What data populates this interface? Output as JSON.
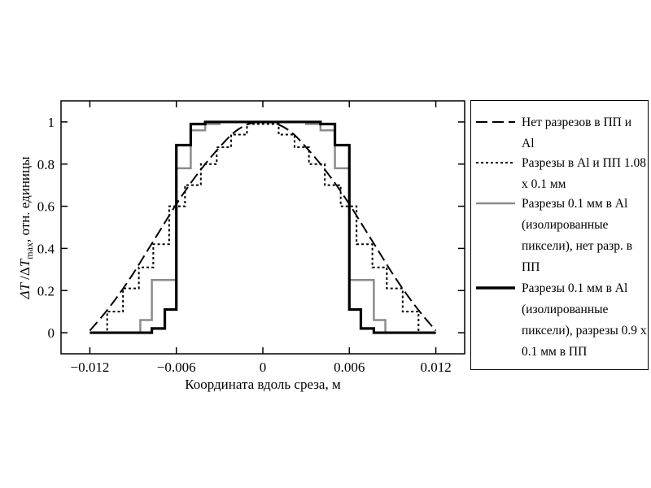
{
  "chart_data": {
    "type": "line",
    "xlabel": "Координата вдоль среза, м",
    "ylabel": "ΔT / ΔT_max, отн. единицы",
    "xlim": [
      -0.014,
      0.014
    ],
    "ylim": [
      -0.1,
      1.1
    ],
    "xticks": [
      -0.012,
      -0.006,
      0,
      0.006,
      0.012
    ],
    "xtick_labels": [
      "−0.012",
      "−0.006",
      "0",
      "0.006",
      "0.012"
    ],
    "yticks": [
      0,
      0.2,
      0.4,
      0.6,
      0.8,
      1
    ],
    "ytick_labels": [
      "0",
      "0.2",
      "0.4",
      "0.6",
      "0.8",
      "1"
    ],
    "legend_position": "right, outside plot",
    "series": [
      {
        "name": "Нет разрезов в ПП и Al",
        "style": "dashed",
        "color": "#000000",
        "x": [
          -0.012,
          -0.011,
          -0.01,
          -0.009,
          -0.008,
          -0.007,
          -0.006,
          -0.005,
          -0.004,
          -0.003,
          -0.002,
          -0.001,
          0,
          0.001,
          0.002,
          0.003,
          0.004,
          0.005,
          0.006,
          0.007,
          0.008,
          0.009,
          0.01,
          0.011,
          0.012
        ],
        "y": [
          0.01,
          0.09,
          0.18,
          0.28,
          0.39,
          0.5,
          0.61,
          0.71,
          0.8,
          0.88,
          0.95,
          0.99,
          1.0,
          0.99,
          0.95,
          0.88,
          0.8,
          0.71,
          0.61,
          0.5,
          0.39,
          0.28,
          0.18,
          0.09,
          0.01
        ]
      },
      {
        "name": "Разрезы в Al и ПП 1.08 x 0.1 мм",
        "style": "dotted",
        "color": "#000000",
        "x": [
          -0.012,
          -0.0108,
          -0.0108,
          -0.0097,
          -0.0097,
          -0.0086,
          -0.0086,
          -0.0076,
          -0.0076,
          -0.0065,
          -0.0065,
          -0.0054,
          -0.0054,
          -0.0043,
          -0.0043,
          -0.0032,
          -0.0032,
          -0.0022,
          -0.0022,
          -0.0011,
          -0.0011,
          0.0011,
          0.0011,
          0.0022,
          0.0022,
          0.0032,
          0.0032,
          0.0043,
          0.0043,
          0.0054,
          0.0054,
          0.0065,
          0.0065,
          0.0076,
          0.0076,
          0.0086,
          0.0086,
          0.0097,
          0.0097,
          0.0108,
          0.0108,
          0.012
        ],
        "y": [
          0.0,
          0.0,
          0.1,
          0.1,
          0.21,
          0.21,
          0.31,
          0.31,
          0.42,
          0.42,
          0.6,
          0.6,
          0.7,
          0.7,
          0.8,
          0.8,
          0.88,
          0.88,
          0.94,
          0.94,
          0.99,
          0.99,
          0.94,
          0.94,
          0.88,
          0.88,
          0.8,
          0.8,
          0.7,
          0.7,
          0.6,
          0.6,
          0.42,
          0.42,
          0.31,
          0.31,
          0.21,
          0.21,
          0.1,
          0.1,
          0.0,
          0.0
        ]
      },
      {
        "name": "Разрезы 0.1 мм в Al (изолированные пиксели), нет разр. в ПП",
        "style": "solid",
        "color": "#8c8c8c",
        "x": [
          -0.012,
          -0.0085,
          -0.0085,
          -0.0077,
          -0.0077,
          -0.006,
          -0.006,
          -0.005,
          -0.005,
          -0.004,
          -0.004,
          -0.003,
          -0.003,
          0.003,
          0.003,
          0.004,
          0.004,
          0.005,
          0.005,
          0.006,
          0.006,
          0.0077,
          0.0077,
          0.0085,
          0.0085,
          0.012
        ],
        "y": [
          0.0,
          0.0,
          0.06,
          0.06,
          0.25,
          0.25,
          0.78,
          0.78,
          0.96,
          0.96,
          0.99,
          0.99,
          1.0,
          1.0,
          0.99,
          0.99,
          0.96,
          0.96,
          0.78,
          0.78,
          0.25,
          0.25,
          0.06,
          0.06,
          0.0,
          0.0
        ]
      },
      {
        "name": "Разрезы 0.1 мм в Al (изолированные пиксели), разрезы 0.9 x 0.1 мм в ПП",
        "style": "solid-thick",
        "color": "#000000",
        "x": [
          -0.012,
          -0.0077,
          -0.0077,
          -0.0068,
          -0.0068,
          -0.006,
          -0.006,
          -0.005,
          -0.005,
          -0.004,
          -0.004,
          0.004,
          0.004,
          0.005,
          0.005,
          0.006,
          0.006,
          0.0068,
          0.0068,
          0.0077,
          0.0077,
          0.012
        ],
        "y": [
          0.0,
          0.0,
          0.02,
          0.02,
          0.11,
          0.11,
          0.89,
          0.89,
          0.99,
          0.99,
          1.0,
          1.0,
          0.99,
          0.99,
          0.89,
          0.89,
          0.11,
          0.11,
          0.02,
          0.02,
          0.0,
          0.0
        ]
      }
    ]
  },
  "legend": {
    "items": [
      {
        "label": "Нет разрезов в ПП и Al"
      },
      {
        "label": "Разрезы в Al и ПП 1.08 x 0.1 мм"
      },
      {
        "label": "Разрезы 0.1 мм в Al (изолированные пиксели), нет разр. в ПП"
      },
      {
        "label": "Разрезы 0.1 мм в Al (изолированные пиксели), разрезы 0.9 x 0.1 мм в ПП"
      }
    ]
  }
}
